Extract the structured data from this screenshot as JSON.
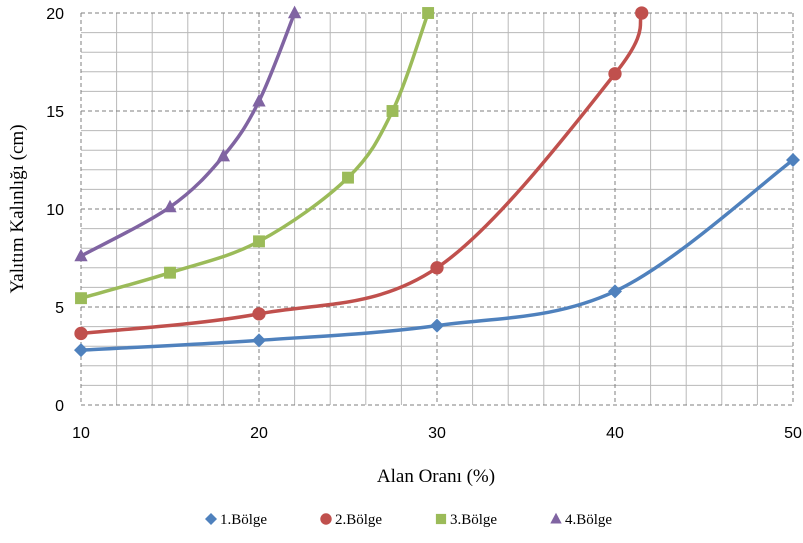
{
  "chart_data": {
    "type": "line",
    "title": "",
    "xlabel": "Alan Oranı (%)",
    "ylabel": "Yalıtım Kalınlığı (cm)",
    "xlim": [
      10,
      50
    ],
    "ylim": [
      0,
      20
    ],
    "x_ticks": [
      10,
      20,
      30,
      40,
      50
    ],
    "y_ticks": [
      0,
      5,
      10,
      15,
      20
    ],
    "x_minor_step": 2,
    "y_minor_step": 1,
    "grid": true,
    "legend_position": "bottom",
    "smooth": true,
    "series": [
      {
        "name": "1.Bölge",
        "color": "#4f81bd",
        "marker": "diamond",
        "points": [
          [
            10,
            2.8
          ],
          [
            20,
            3.3
          ],
          [
            30,
            4.05
          ],
          [
            40,
            5.8
          ],
          [
            50,
            12.5
          ]
        ]
      },
      {
        "name": "2.Bölge",
        "color": "#c0504d",
        "marker": "circle",
        "points": [
          [
            10,
            3.65
          ],
          [
            20,
            4.65
          ],
          [
            30,
            7.0
          ],
          [
            40,
            16.9
          ],
          [
            41.5,
            20.0
          ]
        ]
      },
      {
        "name": "3.Bölge",
        "color": "#9bbb59",
        "marker": "square",
        "points": [
          [
            10,
            5.45
          ],
          [
            15,
            6.75
          ],
          [
            20,
            8.35
          ],
          [
            25,
            11.6
          ],
          [
            27.5,
            15.0
          ],
          [
            29.5,
            20.0
          ]
        ]
      },
      {
        "name": "4.Bölge",
        "color": "#8064a2",
        "marker": "triangle",
        "points": [
          [
            10,
            7.6
          ],
          [
            15,
            10.1
          ],
          [
            18,
            12.7
          ],
          [
            20,
            15.5
          ],
          [
            22,
            20.0
          ]
        ]
      }
    ]
  }
}
